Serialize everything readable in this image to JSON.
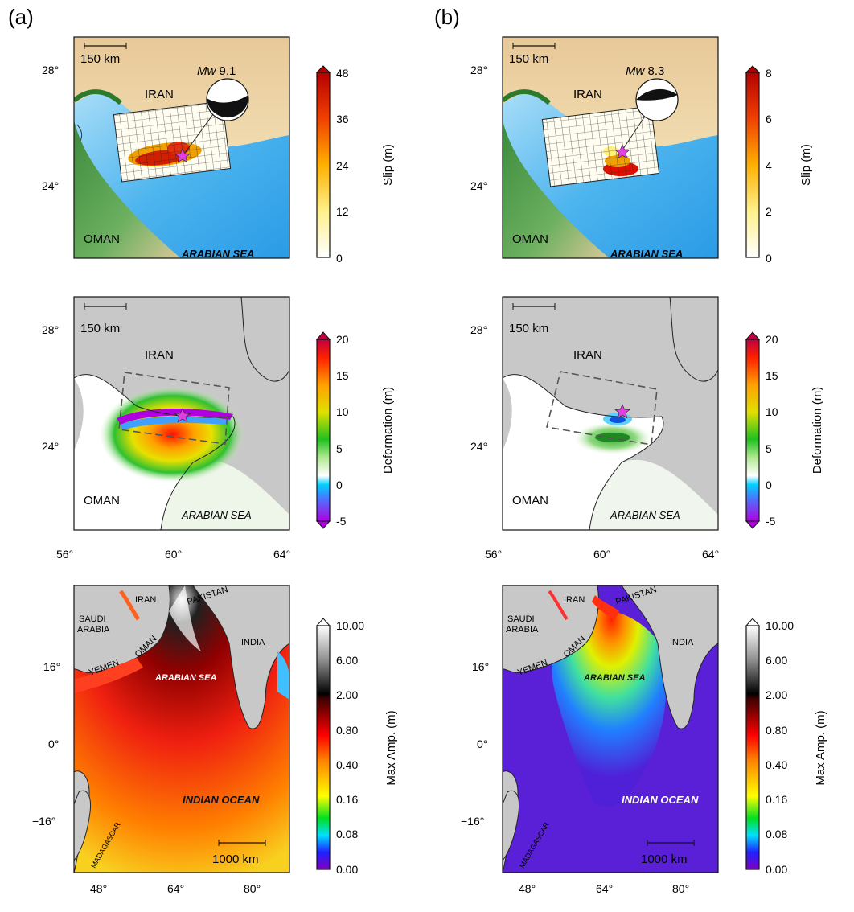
{
  "panels": {
    "a": "(a)",
    "b": "(b)"
  },
  "places": {
    "iran": "IRAN",
    "oman": "OMAN",
    "arabian_sea": "ARABIAN SEA",
    "pakistan": "PAKISTAN",
    "india": "INDIA",
    "saudi": "SAUDI",
    "arabia": "ARABIA",
    "yemen": "YEMEN",
    "madagascar": "MADAGASCAR",
    "indian_ocean": "INDIAN OCEAN"
  },
  "scales": {
    "regional": "150 km",
    "ocean": "1000 km"
  },
  "magnitudes": {
    "a": {
      "label": "Mw",
      "value": "9.1"
    },
    "b": {
      "label": "Mw",
      "value": "8.3"
    }
  },
  "axes": {
    "lat_top": [
      "28°",
      "24°"
    ],
    "lon_mid": [
      "56°",
      "60°",
      "64°"
    ],
    "lat_bottom": [
      "16°",
      "0°",
      "−16°"
    ],
    "lon_bottom": [
      "48°",
      "64°",
      "80°"
    ]
  },
  "colorbars": {
    "slip_a": {
      "label": "Slip (m)",
      "ticks": [
        "48",
        "36",
        "24",
        "12",
        "0"
      ]
    },
    "slip_b": {
      "label": "Slip (m)",
      "ticks": [
        "8",
        "6",
        "4",
        "2",
        "0"
      ]
    },
    "deformation": {
      "label": "Deformation (m)",
      "ticks": [
        "20",
        "15",
        "10",
        "5",
        "0",
        "-5"
      ]
    },
    "amplitude": {
      "label": "Max Amp. (m)",
      "ticks": [
        "10.00",
        "6.00",
        "2.00",
        "0.80",
        "0.40",
        "0.16",
        "0.08",
        "0.00"
      ]
    }
  },
  "colors": {
    "land_gray": "#c8c8c8",
    "sea_blue": "#38a7e8",
    "fault_red": "#d41414",
    "star": "#e040e0",
    "amp_red": "#f03010",
    "amp_purple": "#5a20d8"
  }
}
